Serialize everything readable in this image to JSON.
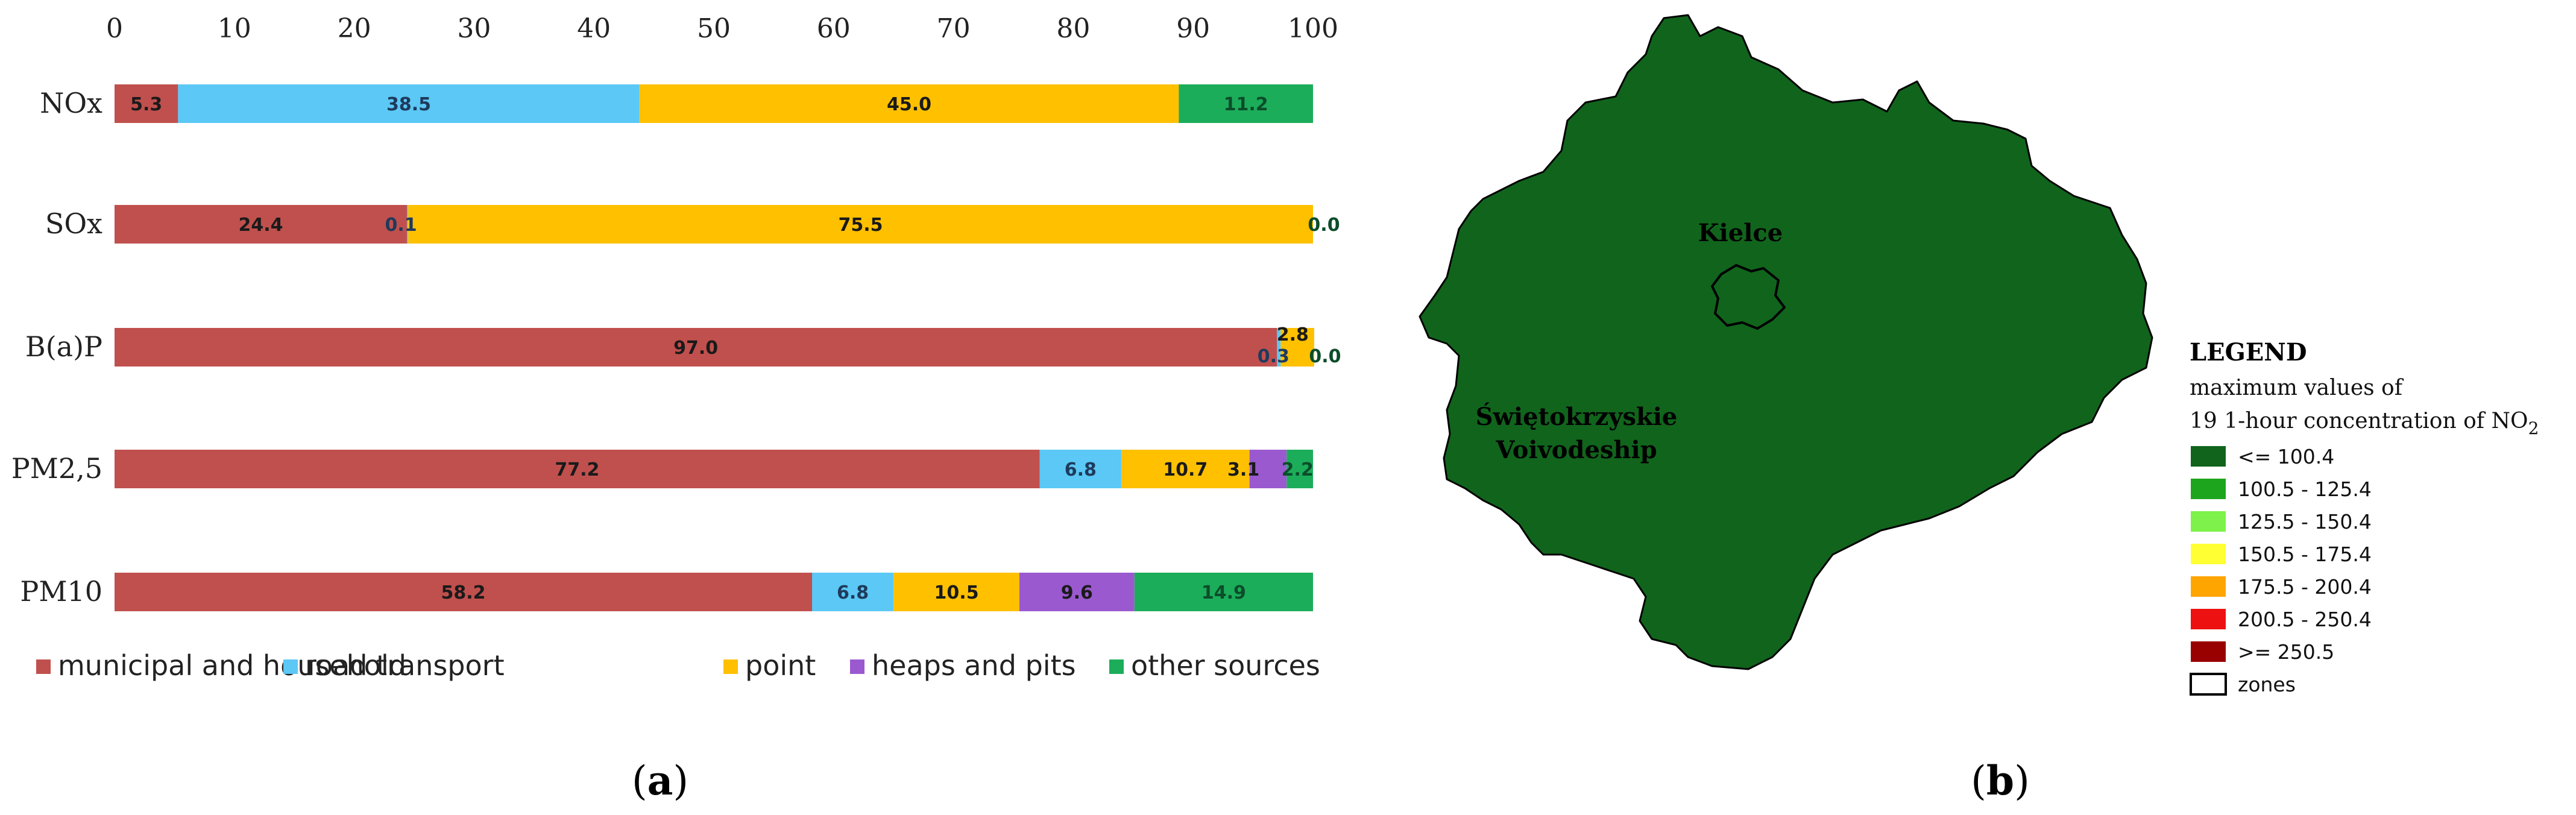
{
  "panels": {
    "a": "a",
    "b": "b"
  },
  "colors": {
    "municipal": "#c0504d",
    "road": "#5bc8f5",
    "point": "#ffc000",
    "heaps": "#9b59d0",
    "other": "#1cad5a",
    "map_fill": "#11641c"
  },
  "chart_data": {
    "type": "bar",
    "orientation": "horizontal",
    "stacked": true,
    "title": "",
    "xlabel": "",
    "ylabel": "",
    "xlim": [
      0,
      100
    ],
    "xticks": [
      0,
      10,
      20,
      30,
      40,
      50,
      60,
      70,
      80,
      90,
      100
    ],
    "x_axis_position": "top",
    "grid": false,
    "legend_position": "bottom",
    "categories": [
      "NOx",
      "SOx",
      "B(a)P",
      "PM2,5",
      "PM10"
    ],
    "series": [
      {
        "name": "municipal and household",
        "color_key": "municipal",
        "values": [
          5.3,
          24.4,
          97.0,
          77.2,
          58.2
        ],
        "labels": [
          "5.3",
          "24.4",
          "97.0",
          "77.2",
          "58.2"
        ]
      },
      {
        "name": "road transport",
        "color_key": "road",
        "values": [
          38.5,
          0.1,
          0.3,
          6.8,
          6.8
        ],
        "labels": [
          "38.5",
          "0.1",
          "0.3",
          "6.8",
          "6.8"
        ]
      },
      {
        "name": "point",
        "color_key": "point",
        "values": [
          45.0,
          75.5,
          2.8,
          10.7,
          10.5
        ],
        "labels": [
          "45.0",
          "75.5",
          "2.8",
          "10.7",
          "10.5"
        ]
      },
      {
        "name": "heaps and pits",
        "color_key": "heaps",
        "values": [
          0,
          0,
          0,
          3.1,
          9.6
        ],
        "labels": [
          "",
          "",
          "",
          "3.1",
          "9.6"
        ]
      },
      {
        "name": "other sources",
        "color_key": "other",
        "values": [
          11.2,
          0.0,
          0.0,
          2.2,
          14.9
        ],
        "labels": [
          "11.2",
          "0.0",
          "0.0",
          "2.2",
          "14.9"
        ]
      }
    ]
  },
  "map": {
    "city_label": "Kielce",
    "region_label_line1": "Świętokrzyskie",
    "region_label_line2": "Voivodeship",
    "legend": {
      "title": "LEGEND",
      "subtitle_line1": "maximum values of",
      "subtitle_line2": "19 1-hour concentration of NO",
      "subtitle_sub": "2",
      "items": [
        {
          "label": "<= 100.4",
          "color": "#11641c"
        },
        {
          "label": "100.5 - 125.4",
          "color": "#1ea51e"
        },
        {
          "label": "125.5 - 150.4",
          "color": "#7ef24a"
        },
        {
          "label": "150.5 - 175.4",
          "color": "#ffff33"
        },
        {
          "label": "175.5 - 200.4",
          "color": "#ffa500"
        },
        {
          "label": "200.5 - 250.4",
          "color": "#ee1111"
        },
        {
          "label": ">= 250.5",
          "color": "#990000"
        },
        {
          "label": "zones",
          "color": "#ffffff"
        }
      ]
    }
  }
}
